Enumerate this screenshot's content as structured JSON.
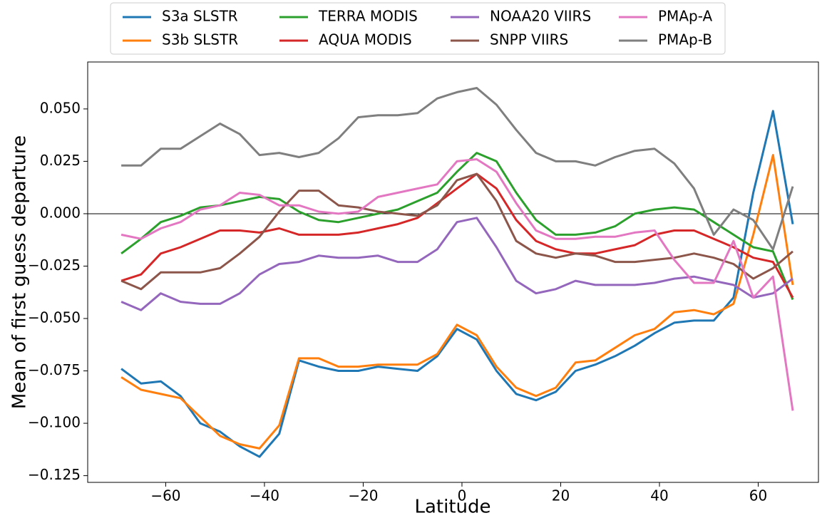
{
  "chart_data": {
    "type": "line",
    "xlabel": "Latitude",
    "ylabel": "Mean of first guess departure",
    "x": [
      -69,
      -65,
      -61,
      -57,
      -53,
      -49,
      -45,
      -41,
      -37,
      -33,
      -29,
      -25,
      -21,
      -17,
      -13,
      -9,
      -5,
      -1,
      3,
      7,
      11,
      15,
      19,
      23,
      27,
      31,
      35,
      39,
      43,
      47,
      51,
      55,
      59,
      63,
      67
    ],
    "series": [
      {
        "name": "S3a SLSTR",
        "color": "#1f77b4",
        "values": [
          -0.074,
          -0.081,
          -0.08,
          -0.087,
          -0.1,
          -0.104,
          -0.111,
          -0.116,
          -0.105,
          -0.07,
          -0.073,
          -0.075,
          -0.075,
          -0.073,
          -0.074,
          -0.075,
          -0.068,
          -0.055,
          -0.06,
          -0.075,
          -0.086,
          -0.089,
          -0.085,
          -0.075,
          -0.072,
          -0.068,
          -0.063,
          -0.057,
          -0.052,
          -0.051,
          -0.051,
          -0.04,
          0.01,
          0.049,
          -0.005
        ]
      },
      {
        "name": "S3b SLSTR",
        "color": "#ff7f0e",
        "values": [
          -0.078,
          -0.084,
          -0.086,
          -0.088,
          -0.097,
          -0.106,
          -0.11,
          -0.112,
          -0.101,
          -0.069,
          -0.069,
          -0.073,
          -0.073,
          -0.072,
          -0.072,
          -0.072,
          -0.067,
          -0.053,
          -0.058,
          -0.073,
          -0.083,
          -0.087,
          -0.083,
          -0.071,
          -0.07,
          -0.064,
          -0.058,
          -0.055,
          -0.047,
          -0.046,
          -0.048,
          -0.043,
          -0.01,
          0.028,
          -0.034
        ]
      },
      {
        "name": "TERRA MODIS",
        "color": "#2ca02c",
        "values": [
          -0.019,
          -0.012,
          -0.004,
          -0.001,
          0.003,
          0.004,
          0.006,
          0.008,
          0.007,
          0.001,
          -0.003,
          -0.004,
          -0.002,
          0.0,
          0.002,
          0.006,
          0.01,
          0.02,
          0.029,
          0.025,
          0.01,
          -0.003,
          -0.01,
          -0.01,
          -0.009,
          -0.006,
          0.0,
          0.002,
          0.003,
          0.002,
          -0.004,
          -0.01,
          -0.016,
          -0.018,
          -0.041
        ]
      },
      {
        "name": "AQUA MODIS",
        "color": "#d62728",
        "values": [
          -0.032,
          -0.029,
          -0.019,
          -0.016,
          -0.012,
          -0.008,
          -0.008,
          -0.009,
          -0.007,
          -0.01,
          -0.01,
          -0.01,
          -0.009,
          -0.007,
          -0.005,
          -0.002,
          0.005,
          0.012,
          0.019,
          0.012,
          -0.003,
          -0.013,
          -0.017,
          -0.019,
          -0.019,
          -0.017,
          -0.015,
          -0.01,
          -0.008,
          -0.008,
          -0.012,
          -0.016,
          -0.021,
          -0.023,
          -0.04
        ]
      },
      {
        "name": "NOAA20 VIIRS",
        "color": "#9467bd",
        "values": [
          -0.042,
          -0.046,
          -0.038,
          -0.042,
          -0.043,
          -0.043,
          -0.038,
          -0.029,
          -0.024,
          -0.023,
          -0.02,
          -0.021,
          -0.021,
          -0.02,
          -0.023,
          -0.023,
          -0.017,
          -0.004,
          -0.002,
          -0.016,
          -0.032,
          -0.038,
          -0.036,
          -0.032,
          -0.034,
          -0.034,
          -0.034,
          -0.033,
          -0.031,
          -0.03,
          -0.032,
          -0.034,
          -0.04,
          -0.038,
          -0.031
        ]
      },
      {
        "name": "SNPP VIIRS",
        "color": "#8c564b",
        "values": [
          -0.032,
          -0.036,
          -0.028,
          -0.028,
          -0.028,
          -0.026,
          -0.019,
          -0.011,
          0.001,
          0.011,
          0.011,
          0.004,
          0.003,
          0.001,
          0.0,
          -0.001,
          0.004,
          0.016,
          0.019,
          0.006,
          -0.013,
          -0.019,
          -0.021,
          -0.019,
          -0.02,
          -0.023,
          -0.023,
          -0.022,
          -0.021,
          -0.019,
          -0.021,
          -0.024,
          -0.031,
          -0.026,
          -0.018
        ]
      },
      {
        "name": "PMAp-A",
        "color": "#e377c2",
        "values": [
          -0.01,
          -0.012,
          -0.007,
          -0.004,
          0.002,
          0.004,
          0.01,
          0.009,
          0.004,
          0.004,
          0.001,
          0.0,
          0.001,
          0.008,
          0.01,
          0.012,
          0.014,
          0.025,
          0.026,
          0.02,
          0.005,
          -0.008,
          -0.012,
          -0.012,
          -0.011,
          -0.011,
          -0.009,
          -0.008,
          -0.022,
          -0.033,
          -0.033,
          -0.013,
          -0.04,
          -0.03,
          -0.094
        ]
      },
      {
        "name": "PMAp-B",
        "color": "#7f7f7f",
        "values": [
          0.023,
          0.023,
          0.031,
          0.031,
          0.037,
          0.043,
          0.038,
          0.028,
          0.029,
          0.027,
          0.029,
          0.036,
          0.046,
          0.047,
          0.047,
          0.048,
          0.055,
          0.058,
          0.06,
          0.052,
          0.04,
          0.029,
          0.025,
          0.025,
          0.023,
          0.027,
          0.03,
          0.031,
          0.024,
          0.012,
          -0.01,
          0.002,
          -0.003,
          -0.017,
          0.013
        ]
      }
    ],
    "xlim": [
      -75.8,
      72.2
    ],
    "ylim": [
      -0.1282,
      0.0724
    ],
    "xticks": [
      {
        "value": -60,
        "label": "−60"
      },
      {
        "value": -40,
        "label": "−40"
      },
      {
        "value": -20,
        "label": "−20"
      },
      0,
      20,
      40,
      60
    ],
    "yticks": [
      {
        "value": -0.125,
        "label": "−0.125"
      },
      {
        "value": -0.1,
        "label": "−0.100"
      },
      {
        "value": -0.075,
        "label": "−0.075"
      },
      {
        "value": -0.05,
        "label": "−0.050"
      },
      {
        "value": -0.025,
        "label": "−0.025"
      },
      {
        "value": 0,
        "label": "0.000"
      },
      {
        "value": 0.025,
        "label": "0.025"
      },
      {
        "value": 0.05,
        "label": "0.050"
      }
    ],
    "hline": 0,
    "legend": "top",
    "grid": false
  }
}
